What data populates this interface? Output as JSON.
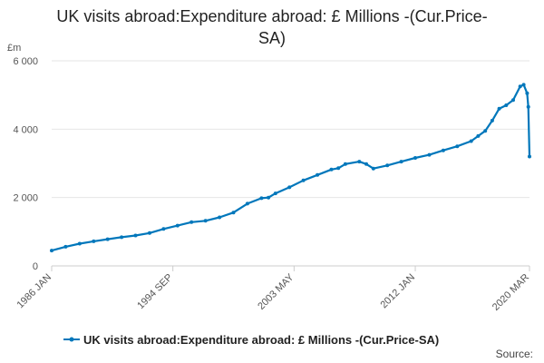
{
  "chart_data": {
    "type": "line",
    "title_line1": "UK visits abroad:Expenditure abroad: £ Millions -(Cur.Price-",
    "title_line2": "SA)",
    "ylabel": "£m",
    "ylim": [
      0,
      6000
    ],
    "yticks": [
      0,
      2000,
      4000,
      6000
    ],
    "ytick_labels": [
      "0",
      "2 000",
      "4 000",
      "6 000"
    ],
    "x_tick_labels": [
      "1986 JAN",
      "1994 SEP",
      "2003 MAY",
      "2012 JAN",
      "2020 MAR"
    ],
    "x_tick_positions": [
      1986.0,
      1994.667,
      2003.333,
      2012.0,
      2020.167
    ],
    "xlim": [
      1986.0,
      2020.167
    ],
    "grid": true,
    "legend_position": "bottom",
    "source": "Source:",
    "color": "#0077bb",
    "series": [
      {
        "name": "UK visits abroad:Expenditure abroad: £ Millions -(Cur.Price-SA)",
        "x": [
          1986.0,
          1987.0,
          1988.0,
          1989.0,
          1990.0,
          1991.0,
          1992.0,
          1993.0,
          1994.0,
          1995.0,
          1996.0,
          1997.0,
          1998.0,
          1999.0,
          2000.0,
          2001.0,
          2001.5,
          2002.0,
          2003.0,
          2004.0,
          2005.0,
          2006.0,
          2006.5,
          2007.0,
          2008.0,
          2008.5,
          2009.0,
          2010.0,
          2011.0,
          2012.0,
          2013.0,
          2014.0,
          2015.0,
          2016.0,
          2016.5,
          2017.0,
          2017.5,
          2018.0,
          2018.5,
          2019.0,
          2019.5,
          2019.75,
          2020.0,
          2020.083,
          2020.167
        ],
        "y": [
          450,
          560,
          650,
          720,
          780,
          840,
          890,
          960,
          1080,
          1180,
          1280,
          1320,
          1420,
          1560,
          1820,
          1980,
          2000,
          2120,
          2300,
          2500,
          2660,
          2820,
          2860,
          2980,
          3050,
          2980,
          2850,
          2940,
          3050,
          3160,
          3250,
          3380,
          3500,
          3650,
          3800,
          3950,
          4250,
          4600,
          4700,
          4850,
          5250,
          5300,
          5050,
          4650,
          3200
        ]
      }
    ]
  }
}
